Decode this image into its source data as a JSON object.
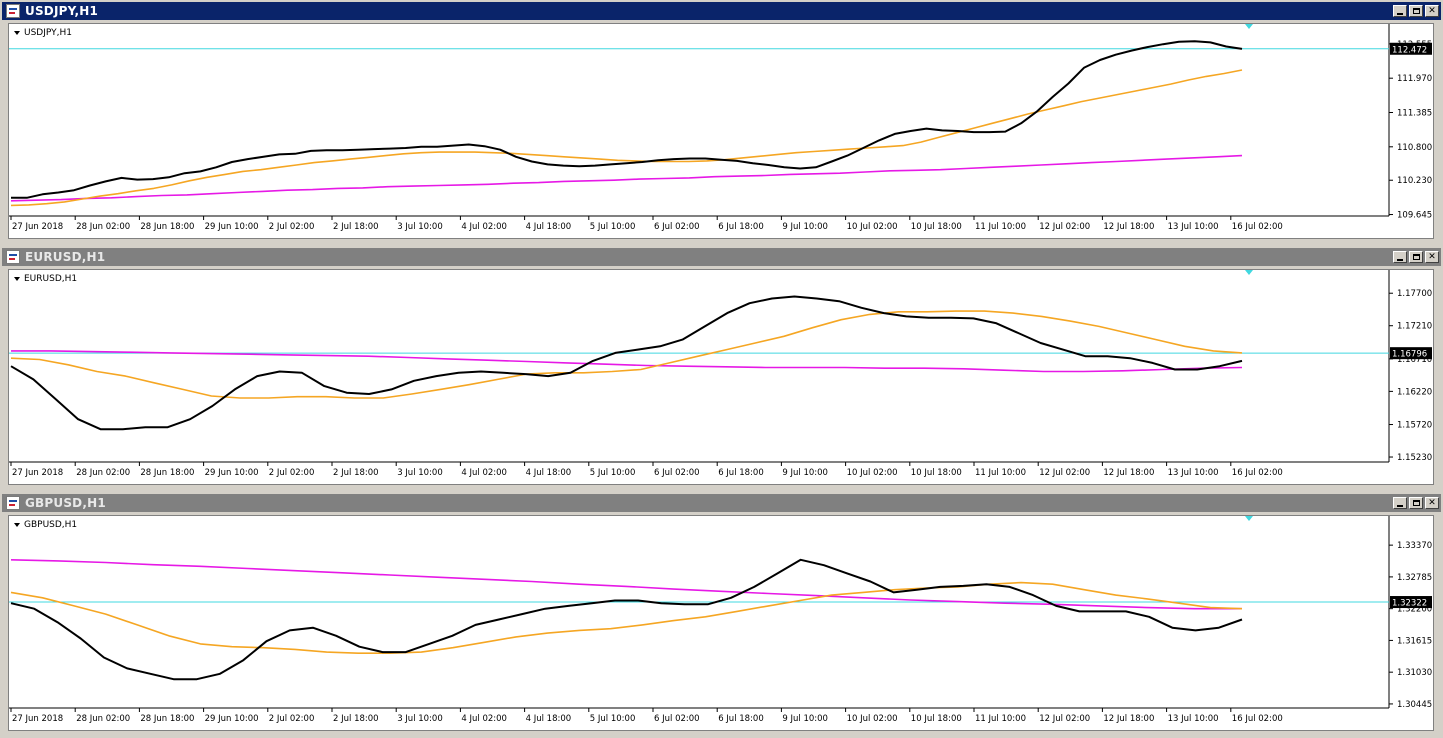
{
  "windows": [
    {
      "title": "USDJPY,H1",
      "active": true,
      "chart_label": "USDJPY,H1",
      "window_buttons": [
        "minimize-icon",
        "maximize-icon",
        "close-icon"
      ]
    },
    {
      "title": "EURUSD,H1",
      "active": false,
      "chart_label": "EURUSD,H1",
      "window_buttons": [
        "minimize-icon",
        "maximize-icon",
        "close-icon"
      ]
    },
    {
      "title": "GBPUSD,H1",
      "active": false,
      "chart_label": "GBPUSD,H1",
      "window_buttons": [
        "minimize-icon",
        "maximize-icon",
        "close-icon"
      ]
    }
  ],
  "chart_data": [
    {
      "type": "line",
      "symbol": "USDJPY",
      "x_ticks": [
        "27 Jun 2018",
        "28 Jun 02:00",
        "28 Jun 18:00",
        "29 Jun 10:00",
        "2 Jul 02:00",
        "2 Jul 18:00",
        "3 Jul 10:00",
        "4 Jul 02:00",
        "4 Jul 18:00",
        "5 Jul 10:00",
        "6 Jul 02:00",
        "6 Jul 18:00",
        "9 Jul 10:00",
        "10 Jul 02:00",
        "10 Jul 18:00",
        "11 Jul 10:00",
        "12 Jul 02:00",
        "12 Jul 18:00",
        "13 Jul 10:00",
        "16 Jul 02:00"
      ],
      "y_ticks": [
        "112.555",
        "111.970",
        "111.385",
        "110.800",
        "110.230",
        "109.645"
      ],
      "y_tick_values": [
        112.555,
        111.97,
        111.385,
        110.8,
        110.23,
        109.645
      ],
      "ylim": [
        109.62,
        112.86
      ],
      "current_price": "112.472",
      "current_value": 112.472,
      "grid": false,
      "series": [
        {
          "color": "#000000",
          "values": [
            109.93,
            109.93,
            109.99,
            110.02,
            110.06,
            110.14,
            110.21,
            110.27,
            110.24,
            110.25,
            110.28,
            110.35,
            110.38,
            110.45,
            110.54,
            110.59,
            110.63,
            110.67,
            110.68,
            110.73,
            110.74,
            110.74,
            110.75,
            110.76,
            110.77,
            110.78,
            110.8,
            110.8,
            110.82,
            110.84,
            110.81,
            110.75,
            110.63,
            110.55,
            110.5,
            110.48,
            110.47,
            110.48,
            110.5,
            110.52,
            110.54,
            110.57,
            110.59,
            110.6,
            110.6,
            110.58,
            110.56,
            110.52,
            110.49,
            110.45,
            110.43,
            110.45,
            110.55,
            110.65,
            110.78,
            110.91,
            111.02,
            111.07,
            111.11,
            111.08,
            111.07,
            111.05,
            111.05,
            111.06,
            111.2,
            111.4,
            111.65,
            111.88,
            112.15,
            112.28,
            112.37,
            112.44,
            112.5,
            112.55,
            112.59,
            112.6,
            112.58,
            112.51,
            112.47
          ]
        },
        {
          "color": "#f5a623",
          "values": [
            109.8,
            109.81,
            109.83,
            109.86,
            109.91,
            109.96,
            110.0,
            110.05,
            110.09,
            110.15,
            110.22,
            110.28,
            110.33,
            110.38,
            110.41,
            110.45,
            110.49,
            110.53,
            110.56,
            110.59,
            110.62,
            110.65,
            110.68,
            110.7,
            110.71,
            110.71,
            110.71,
            110.7,
            110.69,
            110.67,
            110.65,
            110.63,
            110.61,
            110.59,
            110.57,
            110.56,
            110.55,
            110.55,
            110.55,
            110.56,
            110.58,
            110.61,
            110.64,
            110.67,
            110.7,
            110.72,
            110.74,
            110.76,
            110.78,
            110.8,
            110.82,
            110.88,
            110.96,
            111.04,
            111.12,
            111.2,
            111.28,
            111.36,
            111.43,
            111.5,
            111.57,
            111.63,
            111.69,
            111.75,
            111.81,
            111.87,
            111.94,
            112.0,
            112.05,
            112.11
          ]
        },
        {
          "color": "#e619e6",
          "values": [
            109.88,
            109.89,
            109.9,
            109.92,
            109.93,
            109.95,
            109.97,
            109.98,
            110.0,
            110.02,
            110.04,
            110.06,
            110.07,
            110.09,
            110.1,
            110.12,
            110.13,
            110.14,
            110.15,
            110.16,
            110.18,
            110.19,
            110.21,
            110.22,
            110.23,
            110.25,
            110.26,
            110.27,
            110.29,
            110.3,
            110.31,
            110.33,
            110.34,
            110.35,
            110.37,
            110.39,
            110.4,
            110.41,
            110.43,
            110.45,
            110.47,
            110.49,
            110.51,
            110.53,
            110.55,
            110.57,
            110.59,
            110.61,
            110.63,
            110.65
          ]
        }
      ]
    },
    {
      "type": "line",
      "symbol": "EURUSD",
      "x_ticks": [
        "27 Jun 2018",
        "28 Jun 02:00",
        "28 Jun 18:00",
        "29 Jun 10:00",
        "2 Jul 02:00",
        "2 Jul 18:00",
        "3 Jul 10:00",
        "4 Jul 02:00",
        "4 Jul 18:00",
        "5 Jul 10:00",
        "6 Jul 02:00",
        "6 Jul 18:00",
        "9 Jul 10:00",
        "10 Jul 02:00",
        "10 Jul 18:00",
        "11 Jul 10:00",
        "12 Jul 02:00",
        "12 Jul 18:00",
        "13 Jul 10:00",
        "16 Jul 02:00"
      ],
      "y_ticks": [
        "1.17700",
        "1.17210",
        "1.16710",
        "1.16220",
        "1.15720",
        "1.15230"
      ],
      "y_tick_values": [
        1.177,
        1.1721,
        1.1671,
        1.1622,
        1.1572,
        1.1523
      ],
      "ylim": [
        1.15155,
        1.1802
      ],
      "current_price": "1.16796",
      "current_value": 1.16796,
      "grid": false,
      "series": [
        {
          "color": "#000000",
          "values": [
            1.166,
            1.164,
            1.161,
            1.158,
            1.1565,
            1.1565,
            1.1568,
            1.1568,
            1.158,
            1.16,
            1.1625,
            1.1645,
            1.1652,
            1.165,
            1.163,
            1.162,
            1.1618,
            1.1625,
            1.1638,
            1.1645,
            1.165,
            1.1652,
            1.165,
            1.1648,
            1.1645,
            1.165,
            1.1668,
            1.168,
            1.1685,
            1.169,
            1.17,
            1.172,
            1.174,
            1.1755,
            1.1762,
            1.1765,
            1.1762,
            1.1758,
            1.1748,
            1.174,
            1.1735,
            1.1733,
            1.1733,
            1.1732,
            1.1725,
            1.171,
            1.1695,
            1.1685,
            1.1675,
            1.1675,
            1.1672,
            1.1665,
            1.1655,
            1.1655,
            1.166,
            1.1668
          ]
        },
        {
          "color": "#f5a623",
          "values": [
            1.1672,
            1.167,
            1.1662,
            1.1652,
            1.1645,
            1.1635,
            1.1625,
            1.1615,
            1.1612,
            1.1612,
            1.1614,
            1.1614,
            1.1612,
            1.1612,
            1.1618,
            1.1625,
            1.1632,
            1.164,
            1.1648,
            1.165,
            1.165,
            1.1652,
            1.1655,
            1.1665,
            1.1675,
            1.1685,
            1.1695,
            1.1705,
            1.1718,
            1.173,
            1.1738,
            1.1742,
            1.1742,
            1.1743,
            1.1743,
            1.174,
            1.1735,
            1.1728,
            1.172,
            1.171,
            1.17,
            1.169,
            1.1683,
            1.168
          ]
        },
        {
          "color": "#e619e6",
          "values": [
            1.1683,
            1.1683,
            1.1682,
            1.1681,
            1.168,
            1.1679,
            1.1678,
            1.1677,
            1.1676,
            1.1675,
            1.1673,
            1.1671,
            1.1669,
            1.1667,
            1.1665,
            1.1663,
            1.1661,
            1.166,
            1.1659,
            1.1658,
            1.1658,
            1.1658,
            1.1657,
            1.1657,
            1.1656,
            1.1654,
            1.1652,
            1.1652,
            1.1653,
            1.1655,
            1.1657,
            1.1658
          ]
        }
      ]
    },
    {
      "type": "line",
      "symbol": "GBPUSD",
      "x_ticks": [
        "27 Jun 2018",
        "28 Jun 02:00",
        "28 Jun 18:00",
        "29 Jun 10:00",
        "2 Jul 02:00",
        "2 Jul 18:00",
        "3 Jul 10:00",
        "4 Jul 02:00",
        "4 Jul 18:00",
        "5 Jul 10:00",
        "6 Jul 02:00",
        "6 Jul 18:00",
        "9 Jul 10:00",
        "10 Jul 02:00",
        "10 Jul 18:00",
        "11 Jul 10:00",
        "12 Jul 02:00",
        "12 Jul 18:00",
        "13 Jul 10:00",
        "16 Jul 02:00"
      ],
      "y_ticks": [
        "1.33370",
        "1.32785",
        "1.32200",
        "1.31615",
        "1.31030",
        "1.30445"
      ],
      "y_tick_values": [
        1.3337,
        1.32785,
        1.322,
        1.31615,
        1.3103,
        1.30445
      ],
      "ylim": [
        1.3037,
        1.3387
      ],
      "current_price": "1.32322",
      "current_value": 1.32322,
      "grid": false,
      "series": [
        {
          "color": "#000000",
          "values": [
            1.323,
            1.322,
            1.3195,
            1.3165,
            1.313,
            1.311,
            1.31,
            1.309,
            1.309,
            1.31,
            1.3125,
            1.316,
            1.318,
            1.3185,
            1.317,
            1.315,
            1.314,
            1.314,
            1.3155,
            1.317,
            1.319,
            1.32,
            1.321,
            1.322,
            1.3225,
            1.323,
            1.3235,
            1.3235,
            1.323,
            1.3228,
            1.3228,
            1.324,
            1.326,
            1.3285,
            1.331,
            1.33,
            1.3285,
            1.327,
            1.325,
            1.3255,
            1.326,
            1.3262,
            1.3265,
            1.326,
            1.3245,
            1.3225,
            1.3215,
            1.3215,
            1.3215,
            1.3205,
            1.3185,
            1.318,
            1.3185,
            1.32
          ]
        },
        {
          "color": "#f5a623",
          "values": [
            1.325,
            1.324,
            1.3225,
            1.321,
            1.319,
            1.317,
            1.3155,
            1.315,
            1.3148,
            1.3145,
            1.314,
            1.3138,
            1.3138,
            1.314,
            1.3148,
            1.3158,
            1.3168,
            1.3175,
            1.318,
            1.3183,
            1.319,
            1.3198,
            1.3205,
            1.3215,
            1.3225,
            1.3235,
            1.3245,
            1.325,
            1.3255,
            1.3258,
            1.326,
            1.3265,
            1.3268,
            1.3265,
            1.3255,
            1.3245,
            1.3238,
            1.323,
            1.3222,
            1.322
          ]
        },
        {
          "color": "#e619e6",
          "values": [
            1.331,
            1.3308,
            1.3305,
            1.3301,
            1.3298,
            1.3294,
            1.329,
            1.3286,
            1.3282,
            1.3278,
            1.3274,
            1.327,
            1.3265,
            1.3261,
            1.3256,
            1.3252,
            1.3248,
            1.3244,
            1.324,
            1.3236,
            1.3233,
            1.323,
            1.3228,
            1.3225,
            1.3222,
            1.322,
            1.322
          ]
        }
      ]
    }
  ]
}
